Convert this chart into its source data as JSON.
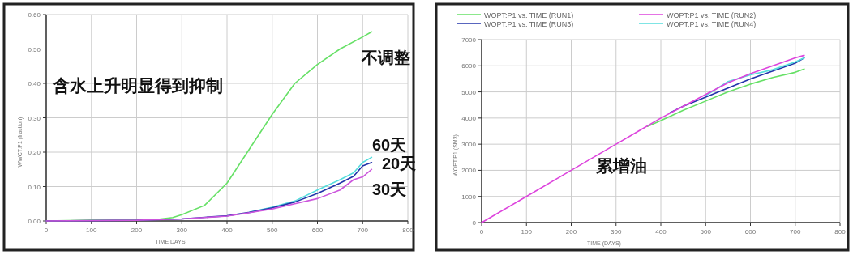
{
  "chart_data": [
    {
      "type": "line",
      "xlabel": "TIME   DAYS",
      "ylabel": "WWCT:P1   (fraction)",
      "xlim": [
        0,
        800
      ],
      "xticks": [
        0,
        100,
        200,
        300,
        400,
        500,
        600,
        700,
        800
      ],
      "ylim": [
        0,
        0.6
      ],
      "yticks": [
        {
          "value": 0,
          "label": "0.00"
        },
        {
          "value": 0.1,
          "label": "0.10"
        },
        {
          "value": 0.2,
          "label": "0.20"
        },
        {
          "value": 0.3,
          "label": "0.30"
        },
        {
          "value": 0.4,
          "label": "0.40"
        },
        {
          "value": 0.5,
          "label": "0.50"
        },
        {
          "value": 0.6,
          "label": "0.60"
        }
      ],
      "grid": true,
      "legend": false,
      "series": [
        {
          "color": "#66e066",
          "x": [
            0,
            100,
            200,
            250,
            280,
            300,
            350,
            400,
            450,
            500,
            550,
            600,
            650,
            700,
            720
          ],
          "values": [
            0,
            0.002,
            0.003,
            0.005,
            0.01,
            0.018,
            0.045,
            0.11,
            0.21,
            0.31,
            0.4,
            0.455,
            0.5,
            0.535,
            0.55
          ]
        },
        {
          "color": "#55dddd",
          "x": [
            450,
            500,
            550,
            600,
            650,
            680,
            700,
            720
          ],
          "values": [
            0.026,
            0.04,
            0.058,
            0.09,
            0.12,
            0.14,
            0.17,
            0.185
          ]
        },
        {
          "color": "#2233aa",
          "x": [
            0,
            200,
            300,
            400,
            450,
            500,
            550,
            600,
            650,
            680,
            700,
            720
          ],
          "values": [
            0,
            0.002,
            0.006,
            0.015,
            0.025,
            0.038,
            0.055,
            0.08,
            0.11,
            0.13,
            0.16,
            0.17
          ]
        },
        {
          "color": "#cc55dd",
          "x": [
            0,
            200,
            300,
            400,
            450,
            500,
            550,
            600,
            650,
            680,
            700,
            720
          ],
          "values": [
            0,
            0.002,
            0.006,
            0.014,
            0.024,
            0.035,
            0.05,
            0.065,
            0.09,
            0.12,
            0.128,
            0.15
          ]
        }
      ],
      "annotations": [
        "含水上升明显得到抑制",
        "不调整",
        "60天",
        "20天",
        "30天"
      ]
    },
    {
      "type": "line",
      "xlabel": "TIME   (DAYS)",
      "ylabel": "WOPT:P1   (SM3)",
      "xlim": [
        0,
        800
      ],
      "xticks": [
        0,
        100,
        200,
        300,
        400,
        500,
        600,
        700,
        800
      ],
      "ylim": [
        0,
        7000
      ],
      "yticks": [
        0,
        1000,
        2000,
        3000,
        4000,
        5000,
        6000,
        7000
      ],
      "grid": true,
      "legend": "top",
      "series": [
        {
          "name": "WOPT:P1 vs. TIME (RUN1)",
          "color": "#66e066",
          "x": [
            370,
            400,
            450,
            500,
            550,
            600,
            650,
            700,
            720
          ],
          "values": [
            3680,
            3900,
            4300,
            4650,
            5000,
            5300,
            5550,
            5750,
            5880
          ]
        },
        {
          "name": "WOPT:P1 vs. TIME (RUN3)",
          "color": "#2233aa",
          "x": [
            420,
            450,
            500,
            550,
            600,
            650,
            700,
            720
          ],
          "values": [
            4200,
            4450,
            4800,
            5150,
            5500,
            5800,
            6100,
            6300
          ]
        },
        {
          "name": "WOPT:P1 vs. TIME (RUN4)",
          "color": "#55dddd",
          "x": [
            500,
            550,
            600,
            650,
            700,
            720
          ],
          "values": [
            4850,
            5400,
            5650,
            5850,
            6150,
            6300
          ]
        },
        {
          "name": "WOPT:P1 vs. TIME (RUN2)",
          "color": "#dd44dd",
          "x": [
            0,
            100,
            200,
            300,
            350,
            400,
            450,
            500,
            550,
            600,
            650,
            700,
            720
          ],
          "values": [
            0,
            1000,
            2000,
            3000,
            3500,
            4000,
            4450,
            4900,
            5350,
            5700,
            6000,
            6300,
            6400
          ]
        }
      ],
      "annotations": [
        "累增油"
      ]
    }
  ]
}
